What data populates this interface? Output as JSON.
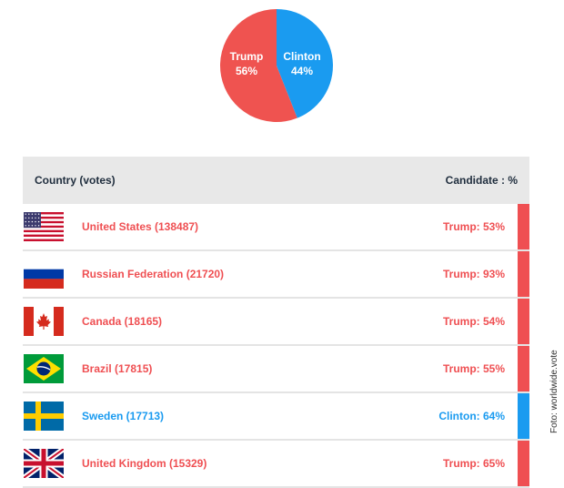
{
  "chart_data": {
    "type": "pie",
    "slices": [
      {
        "name": "Trump",
        "value": 56,
        "label": "56%",
        "color": "#ef5350"
      },
      {
        "name": "Clinton",
        "value": 44,
        "label": "44%",
        "color": "#1a9bf0"
      }
    ]
  },
  "table": {
    "header_country": "Country (votes)",
    "header_candidate": "Candidate : %",
    "rows": [
      {
        "flag": "usa-flag-icon",
        "country": "United States (138487)",
        "candidate": "Trump: 53%",
        "winner": "Trump"
      },
      {
        "flag": "russia-flag-icon",
        "country": "Russian Federation (21720)",
        "candidate": "Trump: 93%",
        "winner": "Trump"
      },
      {
        "flag": "canada-flag-icon",
        "country": "Canada (18165)",
        "candidate": "Trump: 54%",
        "winner": "Trump"
      },
      {
        "flag": "brazil-flag-icon",
        "country": "Brazil (17815)",
        "candidate": "Trump: 55%",
        "winner": "Trump"
      },
      {
        "flag": "sweden-flag-icon",
        "country": "Sweden (17713)",
        "candidate": "Clinton: 64%",
        "winner": "Clinton"
      },
      {
        "flag": "uk-flag-icon",
        "country": "United Kingdom (15329)",
        "candidate": "Trump: 65%",
        "winner": "Trump"
      }
    ]
  },
  "colors": {
    "trump": "#ef4f52",
    "clinton": "#1a9bf0",
    "header_bg": "#e8e8e8"
  },
  "credit": "Foto: worldwide.vote"
}
